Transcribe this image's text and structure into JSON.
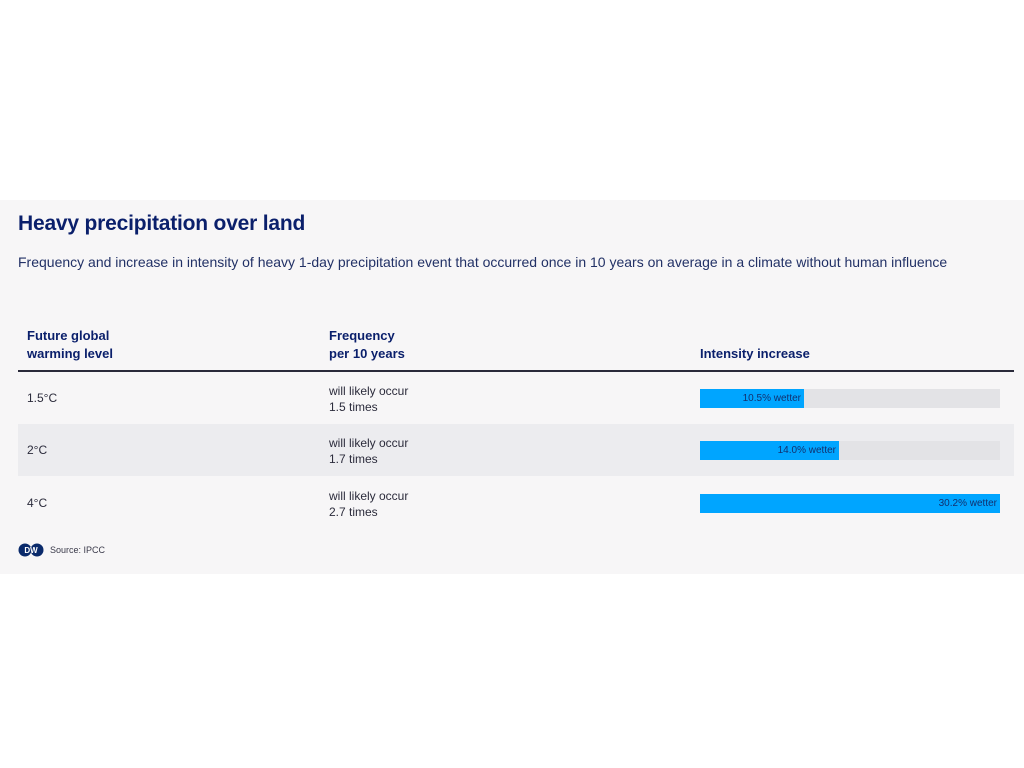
{
  "title": "Heavy precipitation over land",
  "subtitle": "Frequency and increase in intensity of heavy 1-day precipitation event that occurred once in 10 years on average in a climate without human influence",
  "columns": {
    "level": [
      "Future global",
      "warming level"
    ],
    "frequency": [
      "Frequency",
      "per 10 years"
    ],
    "intensity": "Intensity increase"
  },
  "chart_data": {
    "type": "bar",
    "categories": [
      "1.5°C",
      "2°C",
      "4°C"
    ],
    "frequency_text": [
      [
        "will likely occur",
        "1.5 times"
      ],
      [
        "will likely occur",
        "1.7 times"
      ],
      [
        "will likely occur",
        "2.7 times"
      ]
    ],
    "values": [
      10.5,
      14.0,
      30.2
    ],
    "value_labels": [
      "10.5% wetter",
      "14.0% wetter",
      "30.2% wetter"
    ],
    "xlim": [
      0,
      30.2
    ],
    "colors": {
      "bar": "#00a5ff",
      "track": "#e3e3e6"
    }
  },
  "footer": {
    "logo_text": "DW",
    "source": "Source: IPCC"
  }
}
